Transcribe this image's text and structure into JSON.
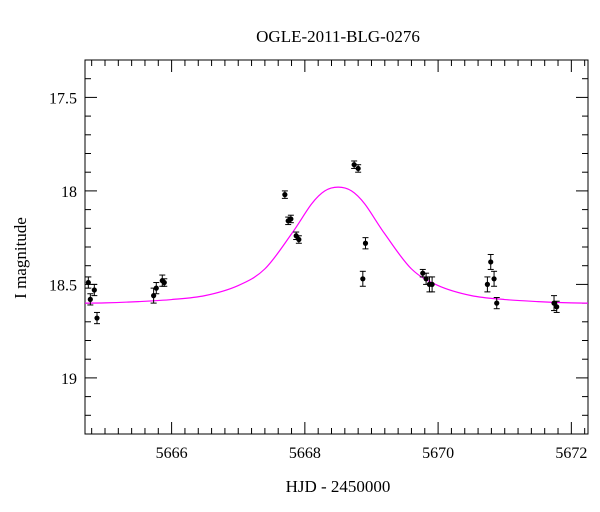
{
  "chart_data": {
    "type": "scatter",
    "title": "OGLE-2011-BLG-0276",
    "xlabel": "HJD - 2450000",
    "ylabel": "I magnitude",
    "xlim": [
      5664.7,
      5672.25
    ],
    "ylim": [
      19.3,
      17.3
    ],
    "y_inverted": true,
    "x_ticks": [
      {
        "value": 5666,
        "label": "5666"
      },
      {
        "value": 5668,
        "label": "5668"
      },
      {
        "value": 5670,
        "label": "5670"
      },
      {
        "value": 5672,
        "label": "5672"
      }
    ],
    "y_ticks": [
      {
        "value": 17.5,
        "label": "17.5"
      },
      {
        "value": 18,
        "label": "18"
      },
      {
        "value": 18.5,
        "label": "18.5"
      },
      {
        "value": 19,
        "label": "19"
      }
    ],
    "x_minor_step": 0.2,
    "y_minor_step": 0.1,
    "grid": false,
    "series": [
      {
        "type": "scatter",
        "color": "#000000",
        "error_bars": true,
        "points": [
          {
            "x": 5664.75,
            "y": 18.49,
            "err": 0.03
          },
          {
            "x": 5664.78,
            "y": 18.58,
            "err": 0.03
          },
          {
            "x": 5664.84,
            "y": 18.53,
            "err": 0.03
          },
          {
            "x": 5664.88,
            "y": 18.68,
            "err": 0.03
          },
          {
            "x": 5665.73,
            "y": 18.56,
            "err": 0.04
          },
          {
            "x": 5665.77,
            "y": 18.52,
            "err": 0.03
          },
          {
            "x": 5665.86,
            "y": 18.48,
            "err": 0.03
          },
          {
            "x": 5665.89,
            "y": 18.49,
            "err": 0.02
          },
          {
            "x": 5667.7,
            "y": 18.02,
            "err": 0.02
          },
          {
            "x": 5667.75,
            "y": 18.16,
            "err": 0.02
          },
          {
            "x": 5667.79,
            "y": 18.15,
            "err": 0.02
          },
          {
            "x": 5667.87,
            "y": 18.24,
            "err": 0.02
          },
          {
            "x": 5667.91,
            "y": 18.26,
            "err": 0.02
          },
          {
            "x": 5668.74,
            "y": 17.86,
            "err": 0.02
          },
          {
            "x": 5668.8,
            "y": 17.88,
            "err": 0.02
          },
          {
            "x": 5668.87,
            "y": 18.47,
            "err": 0.04
          },
          {
            "x": 5668.91,
            "y": 18.28,
            "err": 0.03
          },
          {
            "x": 5669.77,
            "y": 18.44,
            "err": 0.02
          },
          {
            "x": 5669.82,
            "y": 18.47,
            "err": 0.03
          },
          {
            "x": 5669.87,
            "y": 18.5,
            "err": 0.04
          },
          {
            "x": 5669.91,
            "y": 18.5,
            "err": 0.04
          },
          {
            "x": 5670.74,
            "y": 18.5,
            "err": 0.04
          },
          {
            "x": 5670.79,
            "y": 18.38,
            "err": 0.04
          },
          {
            "x": 5670.84,
            "y": 18.47,
            "err": 0.04
          },
          {
            "x": 5670.88,
            "y": 18.6,
            "err": 0.03
          },
          {
            "x": 5671.74,
            "y": 18.6,
            "err": 0.04
          },
          {
            "x": 5671.78,
            "y": 18.62,
            "err": 0.03
          }
        ]
      },
      {
        "type": "line",
        "color": "#ff00ff",
        "x": [
          5664.7,
          5665.0,
          5665.5,
          5666.0,
          5666.5,
          5667.0,
          5667.4,
          5667.8,
          5668.1,
          5668.3,
          5668.5,
          5668.7,
          5668.9,
          5669.2,
          5669.6,
          5670.0,
          5670.5,
          5671.0,
          5671.5,
          5672.0,
          5672.25
        ],
        "y": [
          18.6,
          18.599,
          18.592,
          18.581,
          18.56,
          18.506,
          18.417,
          18.23,
          18.07,
          18.0,
          17.98,
          18.0,
          18.07,
          18.23,
          18.417,
          18.506,
          18.56,
          18.581,
          18.592,
          18.599,
          18.6
        ]
      }
    ]
  }
}
